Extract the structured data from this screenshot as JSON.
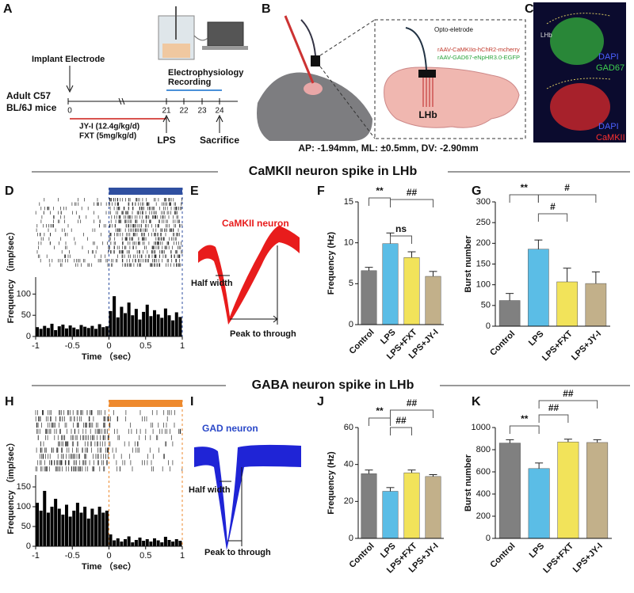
{
  "panel_labels": [
    "A",
    "B",
    "C",
    "D",
    "E",
    "F",
    "G",
    "H",
    "I",
    "J",
    "K"
  ],
  "panel_a": {
    "implant": "Implant Electrode",
    "mice_line1": "Adult C57",
    "mice_line2": "BL/6J mice",
    "recording_line1": "Electrophysiology",
    "recording_line2": "Recording",
    "days": [
      "0",
      "21",
      "22",
      "23",
      "24"
    ],
    "drug1": "JY-I (12.4g/kg/d)",
    "drug2": "FXT (5mg/kg/d)",
    "lps": "LPS",
    "sacrifice": "Sacrifice"
  },
  "panel_b": {
    "electrode": "Opto-eletrode",
    "virus1": "rAAV-CaMKIIα-hChR2-mcherry",
    "virus2": "rAAV-GAD67-eNpHR3.0-EGFP",
    "region": "LHb",
    "coordinates": "AP: -1.94mm, ML: ±0.5mm, DV: -2.90mm"
  },
  "panel_c": {
    "region": "LHb",
    "top_stain1": "DAPI",
    "top_stain2": "GAD67",
    "bottom_stain1": "DAPI",
    "bottom_stain2": "CaMKII"
  },
  "sections": [
    "CaMKII neuron spike in LHb",
    "GABA neuron spike in LHb"
  ],
  "panel_e": {
    "title": "CaMKII neuron",
    "half_width": "Half width",
    "peak": "Peak to through"
  },
  "panel_i": {
    "title": "GAD neuron",
    "half_width": "Half width",
    "peak": "Peak to through"
  },
  "chart_data": [
    {
      "type": "histogram",
      "ylabel": "Frequency （imp/sec）",
      "xlabel": "Time （sec）",
      "color": "#000000",
      "stimulus_color": "#2f4fa0",
      "bins": [
        -1,
        -0.95,
        -0.9,
        -0.85,
        -0.8,
        -0.75,
        -0.7,
        -0.65,
        -0.6,
        -0.55,
        -0.5,
        -0.45,
        -0.4,
        -0.35,
        -0.3,
        -0.25,
        -0.2,
        -0.15,
        -0.1,
        -0.05,
        0,
        0.05,
        0.1,
        0.15,
        0.2,
        0.25,
        0.3,
        0.35,
        0.4,
        0.45,
        0.5,
        0.55,
        0.6,
        0.65,
        0.7,
        0.75,
        0.8,
        0.85,
        0.9,
        0.95,
        1
      ],
      "counts": [
        22,
        18,
        25,
        20,
        30,
        15,
        24,
        28,
        19,
        26,
        21,
        17,
        27,
        23,
        20,
        25,
        18,
        29,
        22,
        24,
        60,
        95,
        45,
        70,
        55,
        80,
        50,
        65,
        40,
        58,
        75,
        48,
        62,
        52,
        44,
        66,
        50,
        38,
        57,
        46
      ],
      "xlim": [
        -1,
        1
      ],
      "xticks": [
        -1,
        -0.5,
        0,
        0.5,
        1
      ],
      "ylim": [
        0,
        140
      ],
      "yticks": [
        0,
        50,
        100
      ]
    },
    {
      "type": "bar",
      "ylabel": "Frequency (Hz)",
      "categories": [
        "Control",
        "LPS",
        "LPS+FXT",
        "LPS+JY-I"
      ],
      "values": [
        6.6,
        9.9,
        8.2,
        5.9
      ],
      "errors": [
        0.4,
        1.3,
        0.7,
        0.6
      ],
      "colors": [
        "#808080",
        "#5bbde6",
        "#f2e35a",
        "#c2b08a"
      ],
      "ylim": [
        0,
        15
      ],
      "yticks": [
        0,
        5,
        10,
        15
      ],
      "annotations": [
        "**",
        "ns",
        "##"
      ]
    },
    {
      "type": "bar",
      "ylabel": "Burst number",
      "categories": [
        "Control",
        "LPS",
        "LPS+FXT",
        "LPS+JY-I"
      ],
      "values": [
        62,
        186,
        107,
        103
      ],
      "errors": [
        17,
        22,
        33,
        28
      ],
      "colors": [
        "#808080",
        "#5bbde6",
        "#f2e35a",
        "#c2b08a"
      ],
      "ylim": [
        0,
        300
      ],
      "yticks": [
        0,
        50,
        100,
        150,
        200,
        250,
        300
      ],
      "annotations": [
        "**",
        "#",
        "#"
      ]
    },
    {
      "type": "histogram",
      "ylabel": "Frequency （imp/sec）",
      "xlabel": "Time （sec）",
      "color": "#000000",
      "stimulus_color": "#ee8a2e",
      "bins": [
        -1,
        -0.95,
        -0.9,
        -0.85,
        -0.8,
        -0.75,
        -0.7,
        -0.65,
        -0.6,
        -0.55,
        -0.5,
        -0.45,
        -0.4,
        -0.35,
        -0.3,
        -0.25,
        -0.2,
        -0.15,
        -0.1,
        -0.05,
        0,
        0.05,
        0.1,
        0.15,
        0.2,
        0.25,
        0.3,
        0.35,
        0.4,
        0.45,
        0.5,
        0.55,
        0.6,
        0.65,
        0.7,
        0.75,
        0.8,
        0.85,
        0.9,
        0.95,
        1
      ],
      "counts": [
        110,
        90,
        140,
        85,
        100,
        120,
        95,
        80,
        105,
        75,
        90,
        110,
        85,
        100,
        70,
        95,
        80,
        100,
        85,
        90,
        30,
        15,
        20,
        12,
        18,
        25,
        10,
        16,
        22,
        14,
        18,
        12,
        20,
        15,
        10,
        24,
        16,
        12,
        18,
        14
      ],
      "xlim": [
        -1,
        1
      ],
      "xticks": [
        -1,
        -0.5,
        0,
        0.5,
        1
      ],
      "ylim": [
        0,
        180
      ],
      "yticks": [
        0,
        50,
        100,
        150
      ]
    },
    {
      "type": "bar",
      "ylabel": "Frequency (Hz)",
      "categories": [
        "Control",
        "LPS",
        "LPS+FXT",
        "LPS+JY-I"
      ],
      "values": [
        35,
        25.5,
        35.5,
        33.5
      ],
      "errors": [
        2,
        2,
        1.5,
        1
      ],
      "colors": [
        "#808080",
        "#5bbde6",
        "#f2e35a",
        "#c2b08a"
      ],
      "ylim": [
        0,
        60
      ],
      "yticks": [
        0,
        20,
        40,
        60
      ],
      "annotations": [
        "**",
        "##",
        "##"
      ]
    },
    {
      "type": "bar",
      "ylabel": "Burst number",
      "categories": [
        "Control",
        "LPS",
        "LPS+FXT",
        "LPS+JY-I"
      ],
      "values": [
        860,
        630,
        870,
        865
      ],
      "errors": [
        30,
        50,
        25,
        25
      ],
      "colors": [
        "#808080",
        "#5bbde6",
        "#f2e35a",
        "#c2b08a"
      ],
      "ylim": [
        0,
        1000
      ],
      "yticks": [
        0,
        200,
        400,
        600,
        800,
        1000
      ],
      "annotations": [
        "**",
        "##",
        "##"
      ]
    }
  ]
}
